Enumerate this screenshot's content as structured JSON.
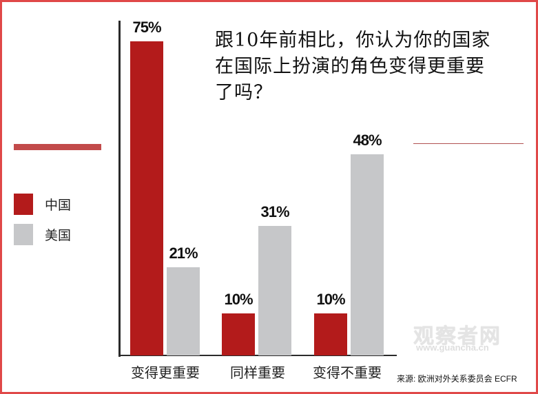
{
  "title": "跟10年前相比，你认为你的国家在国际上扮演的角色变得更重要了吗？",
  "title_lines": [
    "跟10年前相比，你认为你的国家",
    "在国际上扮演的角色变得更重要",
    "了吗？"
  ],
  "legend": [
    {
      "label": "中国",
      "color": "#b31b1b"
    },
    {
      "label": "美国",
      "color": "#c6c7c9"
    }
  ],
  "watermark": {
    "text": "观察者网",
    "url": "www.guancha.cn"
  },
  "source": "来源: 欧洲对外关系委员会  ECFR",
  "colors": {
    "border": "#e04848",
    "china": "#b31b1b",
    "usa": "#c6c7c9",
    "accent_bar": "#c24a4a"
  },
  "chart_data": {
    "type": "bar",
    "title": "跟10年前相比，你认为你的国家在国际上扮演的角色变得更重要了吗？",
    "categories": [
      "变得更重要",
      "同样重要",
      "变得不重要"
    ],
    "series": [
      {
        "name": "中国",
        "values": [
          75,
          10,
          10
        ],
        "labels": [
          "75%",
          "10%",
          "10%"
        ]
      },
      {
        "name": "美国",
        "values": [
          21,
          31,
          48
        ],
        "labels": [
          "21%",
          "31%",
          "48%"
        ]
      }
    ],
    "xlabel": "",
    "ylabel": "",
    "ylim": [
      0,
      80
    ],
    "grid": false,
    "legend_position": "left",
    "source": "来源: 欧洲对外关系委员会  ECFR"
  }
}
